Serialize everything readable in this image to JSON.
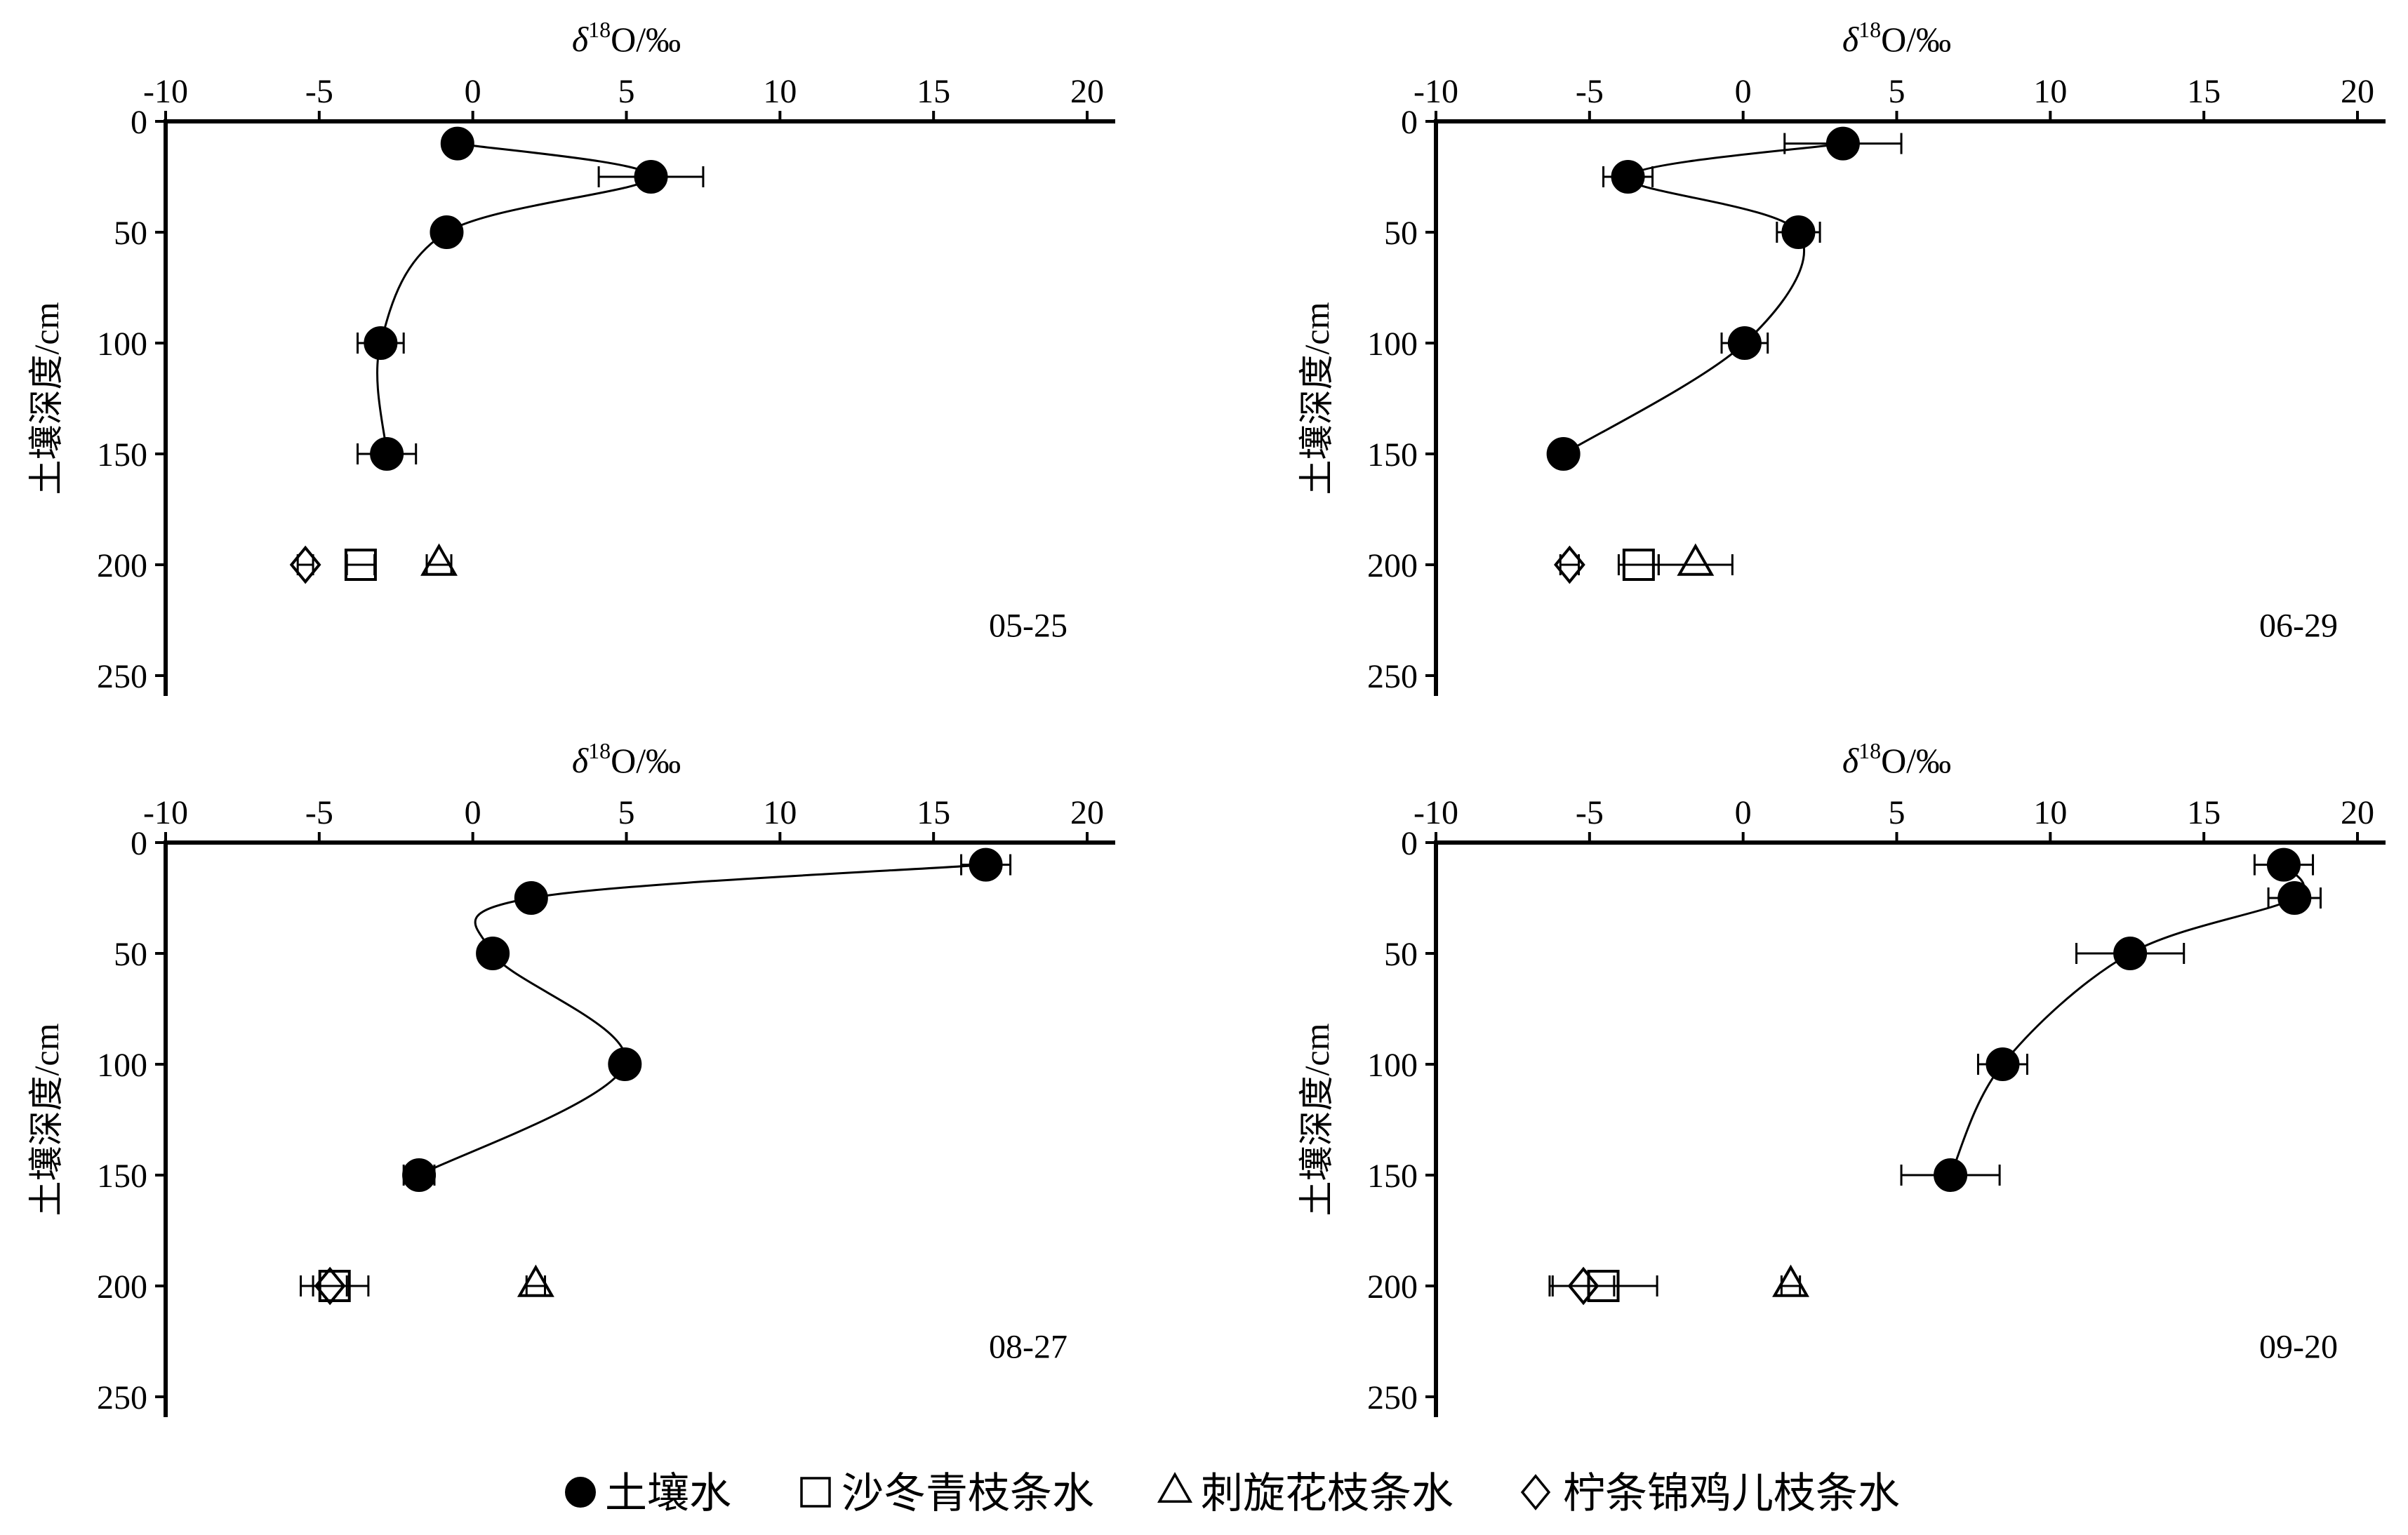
{
  "legend": {
    "position": "bottom",
    "entries": [
      {
        "marker": "filled-circle",
        "label": "土壤水"
      },
      {
        "marker": "open-square",
        "label": "沙冬青枝条水"
      },
      {
        "marker": "open-triangle",
        "label": "刺旋花枝条水"
      },
      {
        "marker": "open-diamond",
        "label": "柠条锦鸡儿枝条水"
      }
    ]
  },
  "chart_data": [
    {
      "type": "scatter",
      "label": "05-25",
      "xlabel": {
        "symbol": "δ",
        "superscript": "18",
        "text": "O/‰"
      },
      "ylabel": "土壤深度/cm",
      "x_axis_on_top": true,
      "y_axis_inverted": true,
      "grid": false,
      "xlim": [
        -10,
        20
      ],
      "ylim": [
        0,
        250
      ],
      "x_ticks": [
        -10,
        -5,
        0,
        5,
        10,
        15,
        20
      ],
      "y_ticks": [
        0,
        50,
        100,
        150,
        200,
        250
      ],
      "series": [
        {
          "legend_index": 0,
          "marker": "filled-circle",
          "connected": true,
          "depth": [
            10,
            25,
            50,
            100,
            150
          ],
          "delta18O": [
            -0.5,
            5.8,
            -0.85,
            -3.0,
            -2.8
          ],
          "err": [
            0,
            1.7,
            0,
            0.75,
            0.95
          ]
        },
        {
          "legend_index": 1,
          "marker": "open-square",
          "connected": false,
          "depth": [
            200
          ],
          "delta18O": [
            -3.65
          ],
          "err": [
            0.45
          ]
        },
        {
          "legend_index": 2,
          "marker": "open-triangle",
          "connected": false,
          "depth": [
            200
          ],
          "delta18O": [
            -1.1
          ],
          "err": [
            0.4
          ]
        },
        {
          "legend_index": 3,
          "marker": "open-diamond",
          "connected": false,
          "depth": [
            200
          ],
          "delta18O": [
            -5.45
          ],
          "err": [
            0.25
          ]
        }
      ]
    },
    {
      "type": "scatter",
      "label": "06-29",
      "xlabel": {
        "symbol": "δ",
        "superscript": "18",
        "text": "O/‰"
      },
      "ylabel": "土壤深度/cm",
      "x_axis_on_top": true,
      "y_axis_inverted": true,
      "grid": false,
      "xlim": [
        -10,
        20
      ],
      "ylim": [
        0,
        250
      ],
      "x_ticks": [
        -10,
        -5,
        0,
        5,
        10,
        15,
        20
      ],
      "y_ticks": [
        0,
        50,
        100,
        150,
        200,
        250
      ],
      "series": [
        {
          "legend_index": 0,
          "marker": "filled-circle",
          "connected": true,
          "depth": [
            10,
            25,
            50,
            100,
            150
          ],
          "delta18O": [
            3.25,
            -3.75,
            1.8,
            0.05,
            -5.85
          ],
          "err": [
            1.9,
            0.8,
            0.7,
            0.75,
            0
          ]
        },
        {
          "legend_index": 1,
          "marker": "open-square",
          "connected": false,
          "depth": [
            200
          ],
          "delta18O": [
            -3.4
          ],
          "err": [
            0.65
          ]
        },
        {
          "legend_index": 2,
          "marker": "open-triangle",
          "connected": false,
          "depth": [
            200
          ],
          "delta18O": [
            -1.55
          ],
          "err": [
            1.2
          ]
        },
        {
          "legend_index": 3,
          "marker": "open-diamond",
          "connected": false,
          "depth": [
            200
          ],
          "delta18O": [
            -5.65
          ],
          "err": [
            0.3
          ]
        }
      ]
    },
    {
      "type": "scatter",
      "label": "08-27",
      "xlabel": {
        "symbol": "δ",
        "superscript": "18",
        "text": "O/‰"
      },
      "ylabel": "土壤深度/cm",
      "x_axis_on_top": true,
      "y_axis_inverted": true,
      "grid": false,
      "xlim": [
        -10,
        20
      ],
      "ylim": [
        0,
        250
      ],
      "x_ticks": [
        -10,
        -5,
        0,
        5,
        10,
        15,
        20
      ],
      "y_ticks": [
        0,
        50,
        100,
        150,
        200,
        250
      ],
      "series": [
        {
          "legend_index": 0,
          "marker": "filled-circle",
          "connected": true,
          "depth": [
            10,
            25,
            50,
            100,
            150
          ],
          "delta18O": [
            16.7,
            1.9,
            0.65,
            4.95,
            -1.75
          ],
          "err": [
            0.8,
            0,
            0,
            0,
            0.5
          ]
        },
        {
          "legend_index": 1,
          "marker": "open-square",
          "connected": false,
          "depth": [
            200
          ],
          "delta18O": [
            -4.5
          ],
          "err": [
            1.1
          ]
        },
        {
          "legend_index": 2,
          "marker": "open-triangle",
          "connected": false,
          "depth": [
            200
          ],
          "delta18O": [
            2.05
          ],
          "err": [
            0.3
          ]
        },
        {
          "legend_index": 3,
          "marker": "open-diamond",
          "connected": false,
          "depth": [
            200
          ],
          "delta18O": [
            -4.65
          ],
          "err": [
            0.55
          ]
        }
      ]
    },
    {
      "type": "scatter",
      "label": "09-20",
      "xlabel": {
        "symbol": "δ",
        "superscript": "18",
        "text": "O/‰"
      },
      "ylabel": "土壤深度/cm",
      "x_axis_on_top": true,
      "y_axis_inverted": true,
      "grid": false,
      "xlim": [
        -10,
        20
      ],
      "ylim": [
        0,
        250
      ],
      "x_ticks": [
        -10,
        -5,
        0,
        5,
        10,
        15,
        20
      ],
      "y_ticks": [
        0,
        50,
        100,
        150,
        200,
        250
      ],
      "series": [
        {
          "legend_index": 0,
          "marker": "filled-circle",
          "connected": true,
          "depth": [
            10,
            25,
            50,
            100,
            150
          ],
          "delta18O": [
            17.6,
            17.95,
            12.6,
            8.45,
            6.75
          ],
          "err": [
            0.95,
            0.85,
            1.75,
            0.8,
            1.6
          ]
        },
        {
          "legend_index": 1,
          "marker": "open-square",
          "connected": false,
          "depth": [
            200
          ],
          "delta18O": [
            -4.55
          ],
          "err": [
            1.75
          ]
        },
        {
          "legend_index": 2,
          "marker": "open-triangle",
          "connected": false,
          "depth": [
            200
          ],
          "delta18O": [
            1.55
          ],
          "err": [
            0.3
          ]
        },
        {
          "legend_index": 3,
          "marker": "open-diamond",
          "connected": false,
          "depth": [
            200
          ],
          "delta18O": [
            -5.2
          ],
          "err": [
            1.0
          ]
        }
      ]
    }
  ]
}
